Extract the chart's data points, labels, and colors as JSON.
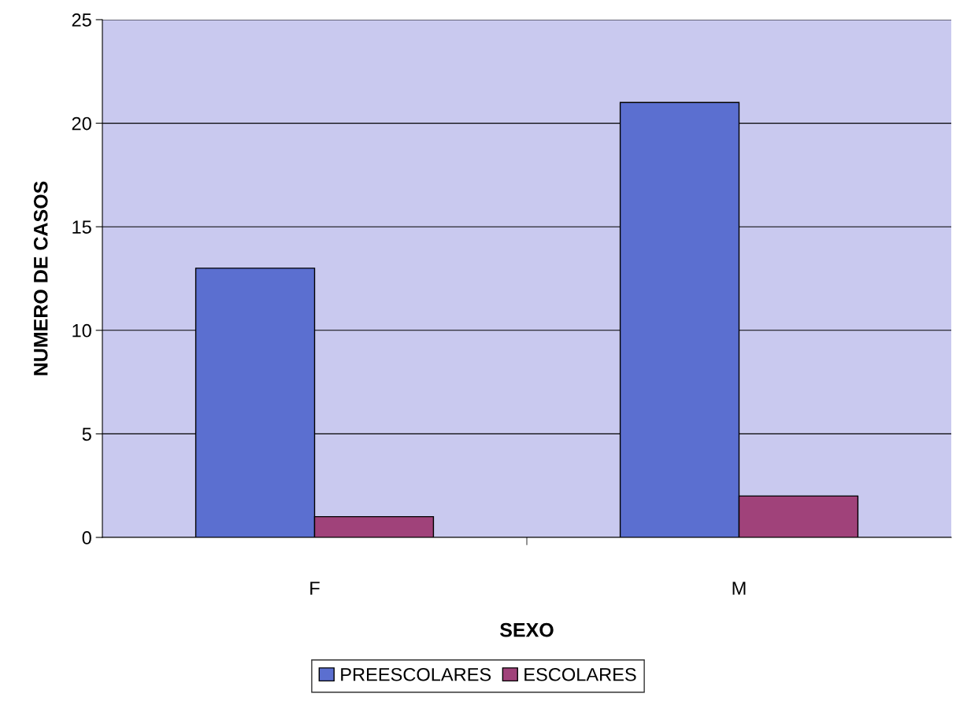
{
  "chart_data": {
    "type": "bar",
    "xlabel": "SEXO",
    "ylabel": "NUMERO DE CASOS",
    "categories": [
      "F",
      "M"
    ],
    "series": [
      {
        "name": "PREESCOLARES",
        "color": "#5b6fd0",
        "values": [
          13,
          21
        ]
      },
      {
        "name": "ESCOLARES",
        "color": "#a0427a",
        "values": [
          1,
          2
        ]
      }
    ],
    "ylim": [
      0,
      25
    ],
    "yticks": [
      0,
      5,
      10,
      15,
      20,
      25
    ],
    "grid": "y",
    "legend": "bottom"
  }
}
